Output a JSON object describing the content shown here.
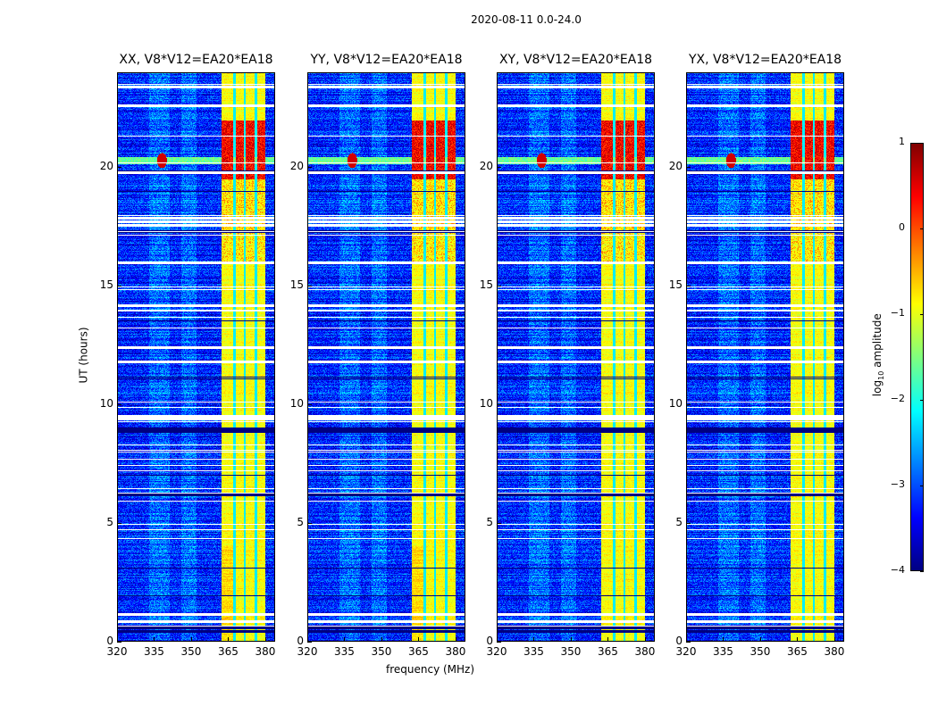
{
  "chart_data": {
    "type": "heatmap",
    "title": "2020-08-11 0.0-24.0",
    "xlabel": "frequency (MHz)",
    "ylabel": "UT (hours)",
    "xlim": [
      320,
      384
    ],
    "ylim": [
      0,
      24
    ],
    "xticks": [
      320,
      335,
      350,
      365,
      380
    ],
    "yticks": [
      0,
      5,
      10,
      15,
      20
    ],
    "panels": [
      {
        "title": "XX, V8*V12=EA20*EA18"
      },
      {
        "title": "YY, V8*V12=EA20*EA18"
      },
      {
        "title": "XY, V8*V12=EA20*EA18"
      },
      {
        "title": "YX, V8*V12=EA20*EA18"
      }
    ],
    "background_log_amplitude": -3.2,
    "rfi_band_mhz": [
      362,
      380
    ],
    "rfi_band_log_amplitude": -0.9,
    "rfi_band_gaps_mhz": [
      367.5,
      371.5,
      376
    ],
    "strong_rfi_hours": [
      19.5,
      22.0
    ],
    "strong_rfi_log_amplitude": 0.4,
    "spike": {
      "freq_mhz": 338,
      "hour": 20.3,
      "log_amplitude": 0.6
    },
    "flagged_hours_white": [
      0.85,
      1.15,
      9.4,
      9.5,
      17.55,
      17.7,
      17.85,
      19.8,
      22.6,
      23.4,
      12.4,
      11.8,
      16.0,
      14.2
    ],
    "flagged_hours_black": [
      0.45,
      0.6,
      8.9,
      9.0,
      6.2,
      17.3
    ],
    "colorbar": {
      "label_prefix": "log",
      "label_sub": "10",
      "label_suffix": " amplitude",
      "ticks": [
        1,
        0,
        -1,
        -2,
        -3,
        -4
      ],
      "tick_labels": [
        "1",
        "0",
        "−1",
        "−2",
        "−3",
        "−4"
      ],
      "clim": [
        -4,
        1
      ],
      "colormap": "jet"
    }
  }
}
